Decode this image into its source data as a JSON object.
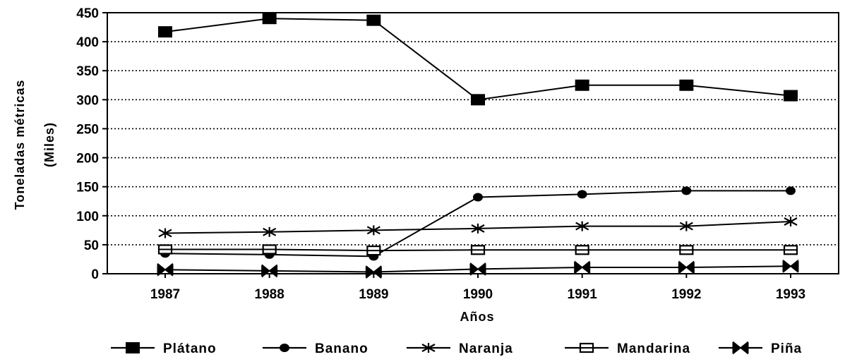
{
  "chart_data": {
    "type": "line",
    "xlabel": "Años",
    "ylabel": [
      "Toneladas métricas",
      "(Miles)"
    ],
    "categories": [
      "1987",
      "1988",
      "1989",
      "1990",
      "1991",
      "1992",
      "1993"
    ],
    "ylim": [
      0,
      450
    ],
    "yticks": [
      0,
      50,
      100,
      150,
      200,
      250,
      300,
      350,
      400,
      450
    ],
    "grid": "horizontal dotted",
    "legend_position": "bottom",
    "series": [
      {
        "name": "Plátano",
        "marker": "filled-square",
        "values": [
          417,
          440,
          437,
          300,
          325,
          325,
          307
        ]
      },
      {
        "name": "Banano",
        "marker": "filled-diamond",
        "values": [
          35,
          33,
          30,
          132,
          137,
          143,
          143
        ]
      },
      {
        "name": "Naranja",
        "marker": "star",
        "values": [
          70,
          72,
          75,
          78,
          82,
          82,
          90
        ]
      },
      {
        "name": "Mandarina",
        "marker": "open-square",
        "values": [
          42,
          42,
          40,
          41,
          41,
          41,
          41
        ]
      },
      {
        "name": "Piña",
        "marker": "bowtie",
        "values": [
          7,
          5,
          3,
          8,
          11,
          11,
          13
        ]
      }
    ]
  }
}
